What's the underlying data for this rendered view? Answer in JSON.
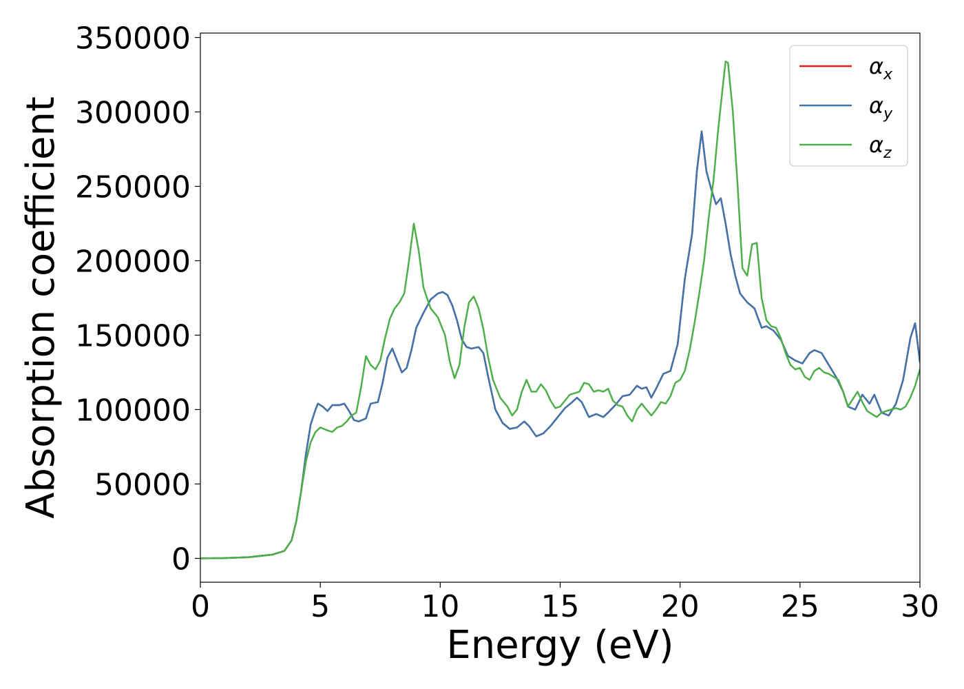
{
  "chart_data": {
    "type": "line",
    "xlabel": "Energy (eV)",
    "ylabel": "Absorption coefficient",
    "xlim": [
      0,
      30
    ],
    "ylim": [
      -16000,
      353000
    ],
    "xticks": [
      0,
      5,
      10,
      15,
      20,
      25,
      30
    ],
    "yticks": [
      0,
      50000,
      100000,
      150000,
      200000,
      250000,
      300000,
      350000
    ],
    "grid": false,
    "legend_position": "top-right",
    "series": [
      {
        "name": "α_x",
        "legend_base": "α",
        "legend_sub": "x",
        "color": "#e41a1c",
        "x": [
          0,
          1,
          2,
          3,
          3.5,
          3.8,
          4.0,
          4.2,
          4.4,
          4.6,
          4.8,
          4.9,
          5.1,
          5.3,
          5.5,
          5.8,
          6.0,
          6.2,
          6.4,
          6.6,
          6.9,
          7.1,
          7.4,
          7.6,
          7.8,
          8.0,
          8.2,
          8.4,
          8.6,
          8.8,
          9.0,
          9.3,
          9.6,
          9.9,
          10.1,
          10.3,
          10.5,
          10.7,
          10.9,
          11.1,
          11.3,
          11.6,
          11.8,
          12.0,
          12.3,
          12.6,
          12.9,
          13.2,
          13.5,
          13.7,
          14.0,
          14.3,
          14.6,
          14.9,
          15.2,
          15.5,
          15.7,
          15.9,
          16.2,
          16.5,
          16.8,
          17.0,
          17.3,
          17.6,
          17.9,
          18.2,
          18.4,
          18.6,
          18.8,
          19.0,
          19.3,
          19.6,
          19.9,
          20.2,
          20.5,
          20.7,
          20.9,
          21.1,
          21.3,
          21.5,
          21.7,
          21.9,
          22.1,
          22.3,
          22.5,
          22.8,
          23.1,
          23.4,
          23.6,
          23.9,
          24.2,
          24.5,
          24.8,
          25.1,
          25.4,
          25.6,
          25.9,
          26.2,
          26.5,
          26.8,
          27.0,
          27.3,
          27.6,
          27.9,
          28.1,
          28.4,
          28.7,
          29.0,
          29.3,
          29.6,
          29.8,
          30.0
        ],
        "y": [
          0,
          200,
          800,
          2500,
          5000,
          12000,
          25000,
          45000,
          70000,
          90000,
          100000,
          104000,
          102000,
          99000,
          103000,
          103000,
          104000,
          99000,
          93000,
          92000,
          94000,
          104000,
          105000,
          118000,
          135000,
          141000,
          133000,
          125000,
          128000,
          140000,
          155000,
          165000,
          174000,
          178000,
          179000,
          177000,
          170000,
          160000,
          147000,
          142000,
          141000,
          142000,
          138000,
          122000,
          100000,
          91000,
          87000,
          88000,
          92000,
          89000,
          82000,
          84000,
          89000,
          95000,
          101000,
          105000,
          108000,
          105000,
          95000,
          97000,
          95000,
          98000,
          103000,
          109000,
          110000,
          116000,
          114000,
          115000,
          108000,
          114000,
          124000,
          126000,
          144000,
          188000,
          218000,
          260000,
          287000,
          260000,
          248000,
          238000,
          242000,
          225000,
          205000,
          190000,
          178000,
          172000,
          168000,
          155000,
          156000,
          153000,
          147000,
          136000,
          133000,
          131000,
          138000,
          140000,
          138000,
          130000,
          122000,
          112000,
          102000,
          100000,
          110000,
          104000,
          110000,
          98000,
          96000,
          104000,
          120000,
          148000,
          158000,
          132000
        ]
      },
      {
        "name": "α_y",
        "legend_base": "α",
        "legend_sub": "y",
        "color": "#3d76ad",
        "x": [
          0,
          1,
          2,
          3,
          3.5,
          3.8,
          4.0,
          4.2,
          4.4,
          4.6,
          4.8,
          4.9,
          5.1,
          5.3,
          5.5,
          5.8,
          6.0,
          6.2,
          6.4,
          6.6,
          6.9,
          7.1,
          7.4,
          7.6,
          7.8,
          8.0,
          8.2,
          8.4,
          8.6,
          8.8,
          9.0,
          9.3,
          9.6,
          9.9,
          10.1,
          10.3,
          10.5,
          10.7,
          10.9,
          11.1,
          11.3,
          11.6,
          11.8,
          12.0,
          12.3,
          12.6,
          12.9,
          13.2,
          13.5,
          13.7,
          14.0,
          14.3,
          14.6,
          14.9,
          15.2,
          15.5,
          15.7,
          15.9,
          16.2,
          16.5,
          16.8,
          17.0,
          17.3,
          17.6,
          17.9,
          18.2,
          18.4,
          18.6,
          18.8,
          19.0,
          19.3,
          19.6,
          19.9,
          20.2,
          20.5,
          20.7,
          20.9,
          21.1,
          21.3,
          21.5,
          21.7,
          21.9,
          22.1,
          22.3,
          22.5,
          22.8,
          23.1,
          23.4,
          23.6,
          23.9,
          24.2,
          24.5,
          24.8,
          25.1,
          25.4,
          25.6,
          25.9,
          26.2,
          26.5,
          26.8,
          27.0,
          27.3,
          27.6,
          27.9,
          28.1,
          28.4,
          28.7,
          29.0,
          29.3,
          29.6,
          29.8,
          30.0
        ],
        "y": [
          0,
          200,
          800,
          2500,
          5000,
          12000,
          25000,
          45000,
          70000,
          90000,
          100000,
          104000,
          102000,
          99000,
          103000,
          103000,
          104000,
          99000,
          93000,
          92000,
          94000,
          104000,
          105000,
          118000,
          135000,
          141000,
          133000,
          125000,
          128000,
          140000,
          155000,
          165000,
          174000,
          178000,
          179000,
          177000,
          170000,
          160000,
          147000,
          142000,
          141000,
          142000,
          138000,
          122000,
          100000,
          91000,
          87000,
          88000,
          92000,
          89000,
          82000,
          84000,
          89000,
          95000,
          101000,
          105000,
          108000,
          105000,
          95000,
          97000,
          95000,
          98000,
          103000,
          109000,
          110000,
          116000,
          114000,
          115000,
          108000,
          114000,
          124000,
          126000,
          144000,
          188000,
          218000,
          260000,
          287000,
          260000,
          248000,
          238000,
          242000,
          225000,
          205000,
          190000,
          178000,
          172000,
          168000,
          155000,
          156000,
          153000,
          147000,
          136000,
          133000,
          131000,
          138000,
          140000,
          138000,
          130000,
          122000,
          112000,
          102000,
          100000,
          110000,
          104000,
          110000,
          98000,
          96000,
          104000,
          120000,
          148000,
          158000,
          132000
        ]
      },
      {
        "name": "α_z",
        "legend_base": "α",
        "legend_sub": "z",
        "color": "#4daf4a",
        "x": [
          0,
          1,
          2,
          3,
          3.5,
          3.8,
          4.0,
          4.2,
          4.4,
          4.6,
          4.8,
          5.0,
          5.3,
          5.5,
          5.7,
          5.9,
          6.1,
          6.3,
          6.5,
          6.7,
          6.9,
          7.1,
          7.3,
          7.5,
          7.7,
          7.9,
          8.1,
          8.3,
          8.5,
          8.7,
          8.9,
          9.1,
          9.3,
          9.6,
          9.9,
          10.2,
          10.4,
          10.6,
          10.8,
          11.0,
          11.2,
          11.4,
          11.6,
          11.8,
          12.0,
          12.2,
          12.5,
          12.8,
          13.0,
          13.2,
          13.4,
          13.6,
          13.8,
          14.0,
          14.2,
          14.4,
          14.6,
          14.8,
          15.0,
          15.2,
          15.4,
          15.6,
          15.8,
          16.0,
          16.2,
          16.4,
          16.6,
          16.8,
          17.0,
          17.2,
          17.4,
          17.6,
          17.8,
          18.0,
          18.2,
          18.4,
          18.6,
          18.8,
          19.0,
          19.2,
          19.4,
          19.6,
          19.8,
          20.0,
          20.2,
          20.4,
          20.6,
          20.8,
          21.0,
          21.2,
          21.4,
          21.6,
          21.8,
          21.9,
          22.0,
          22.2,
          22.4,
          22.6,
          22.8,
          23.0,
          23.2,
          23.4,
          23.6,
          23.8,
          24.0,
          24.2,
          24.4,
          24.6,
          24.8,
          25.0,
          25.2,
          25.4,
          25.6,
          25.8,
          26.0,
          26.2,
          26.4,
          26.6,
          26.8,
          27.0,
          27.2,
          27.4,
          27.6,
          27.8,
          28.0,
          28.2,
          28.4,
          28.6,
          28.8,
          29.0,
          29.2,
          29.4,
          29.6,
          29.8,
          30.0
        ],
        "y": [
          0,
          200,
          800,
          2500,
          5000,
          12000,
          25000,
          45000,
          65000,
          78000,
          85000,
          88000,
          86000,
          85000,
          88000,
          89000,
          92000,
          96000,
          98000,
          115000,
          136000,
          130000,
          127000,
          133000,
          148000,
          161000,
          168000,
          172000,
          178000,
          200000,
          225000,
          207000,
          182000,
          168000,
          162000,
          150000,
          132000,
          121000,
          130000,
          155000,
          172000,
          176000,
          168000,
          154000,
          135000,
          120000,
          108000,
          102000,
          96000,
          100000,
          112000,
          120000,
          112000,
          112000,
          117000,
          113000,
          106000,
          101000,
          102000,
          106000,
          110000,
          111000,
          112000,
          118000,
          117000,
          112000,
          113000,
          112000,
          114000,
          106000,
          103000,
          102000,
          96000,
          92000,
          100000,
          104000,
          100000,
          96000,
          100000,
          105000,
          104000,
          109000,
          118000,
          120000,
          126000,
          140000,
          158000,
          178000,
          200000,
          230000,
          255000,
          290000,
          320000,
          334000,
          333000,
          300000,
          250000,
          195000,
          190000,
          211000,
          212000,
          175000,
          160000,
          156000,
          155000,
          148000,
          138000,
          130000,
          127000,
          128000,
          122000,
          120000,
          126000,
          128000,
          125000,
          124000,
          122000,
          120000,
          112000,
          102000,
          107000,
          112000,
          105000,
          99000,
          97000,
          95000,
          98000,
          99000,
          100000,
          101000,
          100000,
          102000,
          108000,
          116000,
          127000
        ]
      }
    ]
  }
}
